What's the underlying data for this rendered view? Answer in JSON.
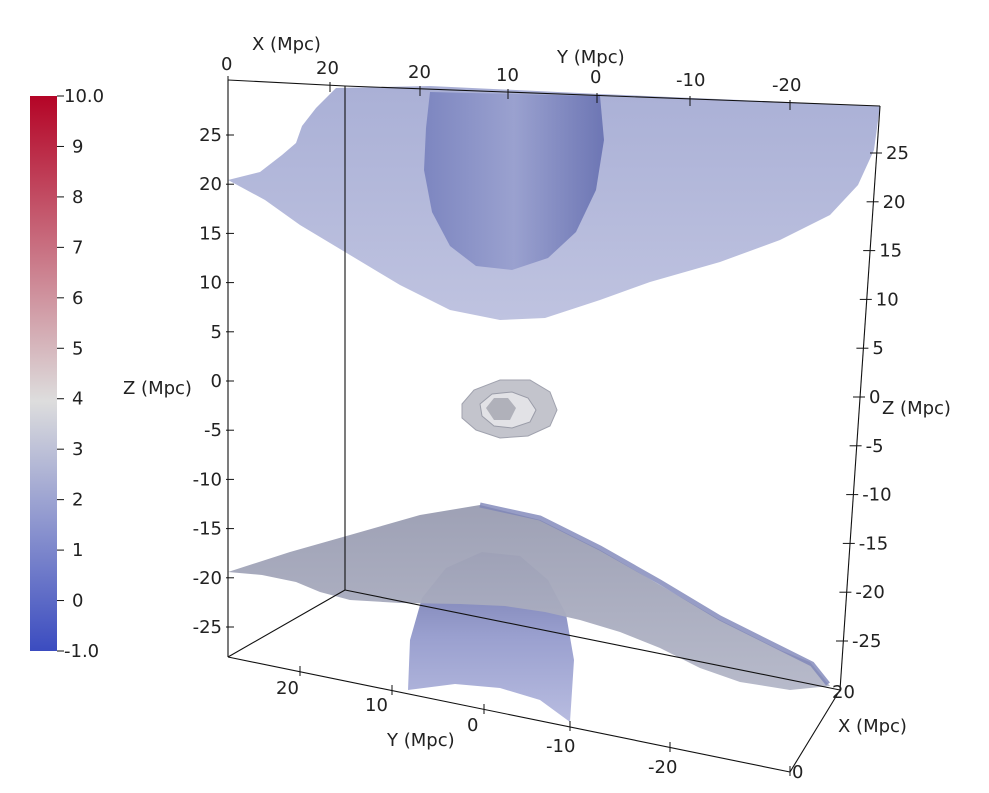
{
  "colorbar": {
    "min_label": "-1.0",
    "max_label": "10.0",
    "tick_labels": [
      "9",
      "8",
      "7",
      "6",
      "5",
      "4",
      "3",
      "2",
      "1",
      "0"
    ],
    "range": [
      -1.0,
      10.0
    ],
    "colors": [
      "#3b4cc0",
      "#dddddd",
      "#b40426"
    ]
  },
  "axes": {
    "x_label": "X (Mpc)",
    "y_label": "Y (Mpc)",
    "z_label": "Z (Mpc)",
    "top_x_ticks": [
      "0",
      "20"
    ],
    "top_y_ticks": [
      "20",
      "10",
      "0",
      "-10",
      "-20"
    ],
    "left_z_ticks": [
      "25",
      "20",
      "15",
      "10",
      "5",
      "0",
      "-5",
      "-10",
      "-15",
      "-20",
      "-25"
    ],
    "right_z_ticks": [
      "25",
      "20",
      "15",
      "10",
      "5",
      "0",
      "-5",
      "-10",
      "-15",
      "-20",
      "-25"
    ],
    "bottom_y_ticks": [
      "20",
      "10",
      "0",
      "-10",
      "-20"
    ],
    "bottom_x_ticks": [
      "20",
      "0"
    ]
  },
  "surfaces": {
    "top_sheet_color": "#b7bcdc",
    "top_cap_color": "#8a91c4",
    "bottom_sheet_color": "#a6a9b9",
    "bottom_cap_color": "#8e95c4",
    "center_blob_color": "#c9cad0"
  }
}
